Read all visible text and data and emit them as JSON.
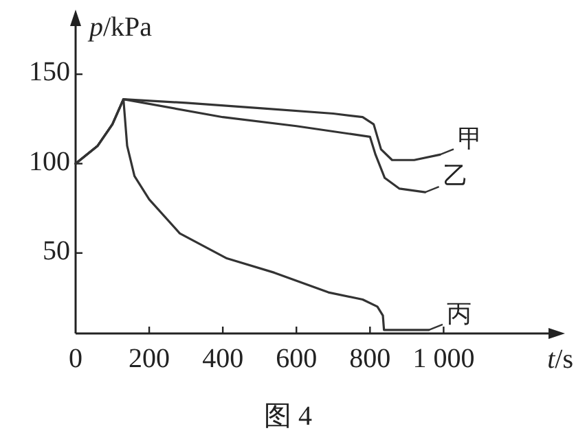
{
  "chart_data": {
    "type": "line",
    "xlabel": "t/s",
    "ylabel": "p/kPa",
    "xlim": [
      0,
      1300
    ],
    "ylim": [
      5,
      180
    ],
    "xticks": [
      0,
      200,
      400,
      600,
      800,
      {
        "value": 1000,
        "label": "1 000"
      }
    ],
    "yticks": [
      50,
      100,
      150
    ],
    "series": [
      {
        "name": "甲",
        "color": "#333333",
        "x": [
          0,
          60,
          100,
          130,
          300,
          500,
          700,
          780,
          810,
          830,
          860,
          920,
          990
        ],
        "values": [
          100,
          110,
          122,
          136,
          134,
          131,
          128,
          126,
          122,
          108,
          102,
          102,
          105
        ]
      },
      {
        "name": "乙",
        "color": "#333333",
        "x": [
          0,
          60,
          100,
          130,
          400,
          600,
          800,
          815,
          840,
          880,
          950
        ],
        "values": [
          100,
          110,
          122,
          136,
          126,
          121,
          115,
          105,
          92,
          86,
          84
        ]
      },
      {
        "name": "丙",
        "color": "#333333",
        "x": [
          0,
          60,
          100,
          130,
          140,
          160,
          200,
          283,
          411,
          540,
          687,
          780,
          820,
          835,
          838,
          960
        ],
        "values": [
          100,
          110,
          122,
          136,
          110,
          93,
          80,
          61,
          47,
          39,
          28,
          24,
          20,
          15,
          7,
          7
        ]
      }
    ],
    "annotations": [
      "图 4"
    ],
    "legend": "right"
  }
}
